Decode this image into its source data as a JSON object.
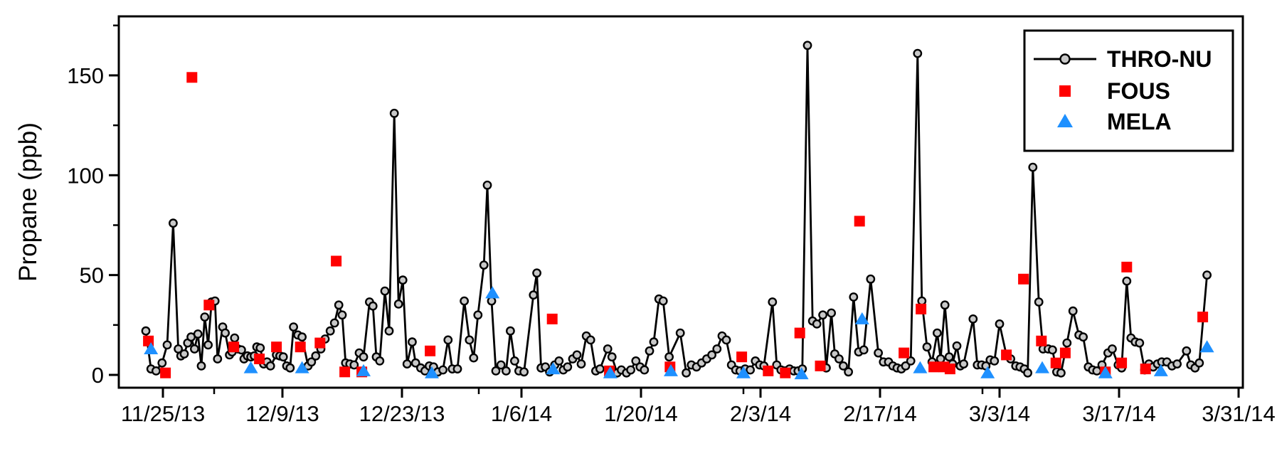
{
  "figure": {
    "background": "#ffffff",
    "frame_color": "#000000"
  },
  "chart_data": {
    "type": "line",
    "title": "",
    "xlabel": "",
    "ylabel": "Propane (ppb)",
    "x_unit": "days since 11/25/2013",
    "x_range_days": [
      -5.2,
      126.5
    ],
    "ylim": [
      -6.4,
      179.6
    ],
    "grid": false,
    "y_ticks_major": [
      0,
      50,
      100,
      150
    ],
    "y_ticks_minor": [
      25,
      75,
      125,
      175
    ],
    "x_ticks_major": [
      {
        "day": 0,
        "label": "11/25/13"
      },
      {
        "day": 14,
        "label": "12/9/13"
      },
      {
        "day": 28,
        "label": "12/23/13"
      },
      {
        "day": 42,
        "label": "1/6/14"
      },
      {
        "day": 56,
        "label": "1/20/14"
      },
      {
        "day": 70,
        "label": "2/3/14"
      },
      {
        "day": 84,
        "label": "2/17/14"
      },
      {
        "day": 98,
        "label": "3/3/14"
      },
      {
        "day": 112,
        "label": "3/17/14"
      },
      {
        "day": 126,
        "label": "3/31/14"
      }
    ],
    "x_ticks_minor_days": [
      6,
      37,
      68,
      96
    ],
    "legend": {
      "position": "top-right",
      "labels": [
        "THRO-NU",
        "FOUS",
        "MELA"
      ]
    },
    "series": [
      {
        "name": "THRO-NU",
        "style": "line-with-circle-markers",
        "line_color": "#000000",
        "marker_fill": "#c8c8c8",
        "marker_stroke": "#000000",
        "points": [
          [
            -2,
            22
          ],
          [
            -1.4,
            3
          ],
          [
            -0.8,
            2
          ],
          [
            -0.1,
            6
          ],
          [
            0.5,
            15
          ],
          [
            1.2,
            76
          ],
          [
            1.8,
            13
          ],
          [
            2.1,
            9.5
          ],
          [
            2.5,
            10.5
          ],
          [
            2.9,
            16
          ],
          [
            3.3,
            19
          ],
          [
            3.7,
            13
          ],
          [
            4.1,
            20.5
          ],
          [
            4.5,
            4.5
          ],
          [
            4.9,
            29
          ],
          [
            5.3,
            15
          ],
          [
            5.7,
            36.5
          ],
          [
            6.1,
            37
          ],
          [
            6.4,
            8
          ],
          [
            7,
            24
          ],
          [
            7.3,
            21
          ],
          [
            7.8,
            10
          ],
          [
            8.1,
            11.5
          ],
          [
            8.4,
            18.5
          ],
          [
            8.8,
            13
          ],
          [
            9.2,
            12.5
          ],
          [
            9.5,
            8
          ],
          [
            9.9,
            9.5
          ],
          [
            10.3,
            9
          ],
          [
            10.7,
            9.5
          ],
          [
            11,
            14
          ],
          [
            11.4,
            13.5
          ],
          [
            11.8,
            5.5
          ],
          [
            12.2,
            6.5
          ],
          [
            12.6,
            4.5
          ],
          [
            13.3,
            10
          ],
          [
            13.7,
            9.5
          ],
          [
            14.1,
            9
          ],
          [
            14.5,
            4.5
          ],
          [
            14.9,
            3.5
          ],
          [
            15.3,
            24
          ],
          [
            15.8,
            20
          ],
          [
            16.3,
            19
          ],
          [
            17,
            4.5
          ],
          [
            17.4,
            6.5
          ],
          [
            17.9,
            9.5
          ],
          [
            18.5,
            13
          ],
          [
            19,
            18
          ],
          [
            19.6,
            22
          ],
          [
            20.1,
            26
          ],
          [
            20.6,
            35
          ],
          [
            21,
            30
          ],
          [
            21.4,
            6
          ],
          [
            21.9,
            5.5
          ],
          [
            22.4,
            5
          ],
          [
            23,
            11
          ],
          [
            23.5,
            9
          ],
          [
            24.2,
            36.5
          ],
          [
            24.6,
            34.5
          ],
          [
            25,
            9
          ],
          [
            25.4,
            7
          ],
          [
            26,
            42
          ],
          [
            26.5,
            22
          ],
          [
            27.1,
            131
          ],
          [
            27.6,
            35.5
          ],
          [
            28.1,
            47.5
          ],
          [
            28.6,
            5.5
          ],
          [
            29.2,
            16.5
          ],
          [
            29.6,
            6
          ],
          [
            30.2,
            3.5
          ],
          [
            30.7,
            2
          ],
          [
            31.2,
            4.5
          ],
          [
            31.7,
            4
          ],
          [
            32.2,
            1.5
          ],
          [
            32.8,
            2.5
          ],
          [
            33.4,
            17.5
          ],
          [
            33.9,
            3
          ],
          [
            34.5,
            3
          ],
          [
            35.3,
            37
          ],
          [
            35.9,
            17.5
          ],
          [
            36.4,
            8.5
          ],
          [
            36.9,
            30
          ],
          [
            37.6,
            55
          ],
          [
            38,
            95
          ],
          [
            38.5,
            37
          ],
          [
            39,
            2
          ],
          [
            39.6,
            5
          ],
          [
            40.2,
            2
          ],
          [
            40.7,
            22
          ],
          [
            41.2,
            7
          ],
          [
            41.7,
            2
          ],
          [
            42.3,
            1.5
          ],
          [
            43.4,
            40
          ],
          [
            43.8,
            51
          ],
          [
            44.3,
            3.5
          ],
          [
            44.8,
            4
          ],
          [
            45.3,
            1.5
          ],
          [
            45.9,
            5
          ],
          [
            46.4,
            7
          ],
          [
            46.9,
            2.5
          ],
          [
            47.4,
            4
          ],
          [
            48,
            8
          ],
          [
            48.5,
            10
          ],
          [
            49,
            5.5
          ],
          [
            49.6,
            19.5
          ],
          [
            50.1,
            17.5
          ],
          [
            50.7,
            2
          ],
          [
            51.2,
            3
          ],
          [
            52.1,
            13
          ],
          [
            52.6,
            9
          ],
          [
            53.2,
            1
          ],
          [
            53.7,
            2.5
          ],
          [
            54.3,
            1
          ],
          [
            54.8,
            2.5
          ],
          [
            55.4,
            7
          ],
          [
            55.9,
            4
          ],
          [
            56.4,
            2.5
          ],
          [
            57,
            12
          ],
          [
            57.5,
            16.5
          ],
          [
            58.1,
            38
          ],
          [
            58.6,
            37
          ],
          [
            59.3,
            9
          ],
          [
            60.6,
            21
          ],
          [
            61.3,
            1
          ],
          [
            61.9,
            5
          ],
          [
            62.5,
            4
          ],
          [
            63.1,
            6
          ],
          [
            63.7,
            8
          ],
          [
            64.3,
            10
          ],
          [
            64.9,
            13
          ],
          [
            65.5,
            19.5
          ],
          [
            66,
            17.5
          ],
          [
            66.6,
            5
          ],
          [
            67.1,
            2.5
          ],
          [
            67.6,
            2
          ],
          [
            68.2,
            3
          ],
          [
            68.8,
            2.5
          ],
          [
            69.4,
            7
          ],
          [
            69.9,
            5
          ],
          [
            70.4,
            4.5
          ],
          [
            71.4,
            36.5
          ],
          [
            71.9,
            5
          ],
          [
            72.4,
            2.5
          ],
          [
            72.9,
            2
          ],
          [
            73.4,
            3
          ],
          [
            73.9,
            2
          ],
          [
            74.4,
            2
          ],
          [
            74.9,
            3
          ],
          [
            75.5,
            165
          ],
          [
            76.1,
            27
          ],
          [
            76.6,
            25.5
          ],
          [
            77.3,
            30
          ],
          [
            77.7,
            3.5
          ],
          [
            78.3,
            31
          ],
          [
            78.7,
            10.5
          ],
          [
            79.2,
            8
          ],
          [
            79.7,
            4.5
          ],
          [
            80.3,
            1.5
          ],
          [
            80.9,
            39
          ],
          [
            81.5,
            11.5
          ],
          [
            82.1,
            12.5
          ],
          [
            82.9,
            48
          ],
          [
            83.8,
            11
          ],
          [
            84.4,
            6.5
          ],
          [
            85,
            6.5
          ],
          [
            85.5,
            4.5
          ],
          [
            86,
            3.5
          ],
          [
            86.5,
            3
          ],
          [
            87,
            4.5
          ],
          [
            87.6,
            7
          ],
          [
            88.4,
            161
          ],
          [
            88.9,
            37
          ],
          [
            89.5,
            14
          ],
          [
            90.1,
            6.5
          ],
          [
            90.7,
            21
          ],
          [
            91.1,
            8
          ],
          [
            91.6,
            35
          ],
          [
            92.1,
            9
          ],
          [
            92.5,
            5.5
          ],
          [
            93,
            14.5
          ],
          [
            93.4,
            4.5
          ],
          [
            93.8,
            5.5
          ],
          [
            94.9,
            28
          ],
          [
            95.4,
            5
          ],
          [
            95.9,
            5
          ],
          [
            96.4,
            4.5
          ],
          [
            96.9,
            7.5
          ],
          [
            97.4,
            7
          ],
          [
            98,
            25.5
          ],
          [
            98.8,
            10
          ],
          [
            99.3,
            8
          ],
          [
            99.9,
            4.5
          ],
          [
            100.4,
            4
          ],
          [
            100.9,
            3
          ],
          [
            101.3,
            1
          ],
          [
            101.9,
            104
          ],
          [
            102.6,
            36.5
          ],
          [
            103.1,
            13
          ],
          [
            103.7,
            13
          ],
          [
            104.2,
            12.5
          ],
          [
            104.7,
            1.5
          ],
          [
            105.2,
            1
          ],
          [
            105.9,
            16
          ],
          [
            106.6,
            32
          ],
          [
            107.3,
            20
          ],
          [
            107.8,
            19
          ],
          [
            108.4,
            4
          ],
          [
            108.9,
            2.5
          ],
          [
            109.4,
            2
          ],
          [
            110,
            5
          ],
          [
            110.7,
            11
          ],
          [
            111.2,
            13
          ],
          [
            111.9,
            5
          ],
          [
            112.3,
            3.5
          ],
          [
            112.9,
            47
          ],
          [
            113.4,
            18.5
          ],
          [
            113.9,
            16.5
          ],
          [
            114.4,
            16
          ],
          [
            115,
            2.5
          ],
          [
            115.5,
            5.5
          ],
          [
            116,
            4
          ],
          [
            116.5,
            5.5
          ],
          [
            117,
            6.5
          ],
          [
            117.6,
            6.5
          ],
          [
            118.2,
            4.5
          ],
          [
            118.8,
            5.5
          ],
          [
            119.9,
            12
          ],
          [
            120.4,
            5
          ],
          [
            120.9,
            3.5
          ],
          [
            121.4,
            6
          ],
          [
            122.3,
            50
          ]
        ]
      },
      {
        "name": "FOUS",
        "style": "square-markers",
        "color": "#ff0000",
        "points": [
          [
            -1.7,
            17
          ],
          [
            0.3,
            1
          ],
          [
            3.4,
            149
          ],
          [
            5.4,
            35
          ],
          [
            8.3,
            14
          ],
          [
            11.3,
            8
          ],
          [
            13.3,
            14
          ],
          [
            16.1,
            14
          ],
          [
            18.4,
            16
          ],
          [
            20.3,
            57
          ],
          [
            21.3,
            1.5
          ],
          [
            23.3,
            1.5
          ],
          [
            31.3,
            12
          ],
          [
            45.6,
            28
          ],
          [
            52.3,
            2
          ],
          [
            59.4,
            4
          ],
          [
            67.8,
            9
          ],
          [
            70.9,
            2
          ],
          [
            72.9,
            1
          ],
          [
            74.6,
            21
          ],
          [
            77,
            4.5
          ],
          [
            81.6,
            77
          ],
          [
            86.8,
            11
          ],
          [
            88.8,
            33
          ],
          [
            90.3,
            4
          ],
          [
            91.5,
            4
          ],
          [
            92.2,
            3
          ],
          [
            98.8,
            10
          ],
          [
            100.8,
            48
          ],
          [
            102.9,
            17
          ],
          [
            104.6,
            6
          ],
          [
            105.7,
            11
          ],
          [
            110.4,
            1.5
          ],
          [
            112.3,
            6
          ],
          [
            112.9,
            54
          ],
          [
            115.1,
            3
          ],
          [
            121.8,
            29
          ]
        ]
      },
      {
        "name": "MELA",
        "style": "triangle-markers",
        "color": "#1e90ff",
        "points": [
          [
            -1.4,
            13
          ],
          [
            10.3,
            3.5
          ],
          [
            16.3,
            3.5
          ],
          [
            23.5,
            2
          ],
          [
            31.5,
            1
          ],
          [
            38.6,
            41
          ],
          [
            45.7,
            3
          ],
          [
            52.4,
            1
          ],
          [
            59.5,
            2
          ],
          [
            68,
            1
          ],
          [
            74.8,
            0.5
          ],
          [
            81.9,
            28
          ],
          [
            88.7,
            3.5
          ],
          [
            96.6,
            1
          ],
          [
            103,
            3.5
          ],
          [
            110.4,
            1
          ],
          [
            116.9,
            2
          ],
          [
            122.3,
            14
          ]
        ]
      }
    ]
  }
}
